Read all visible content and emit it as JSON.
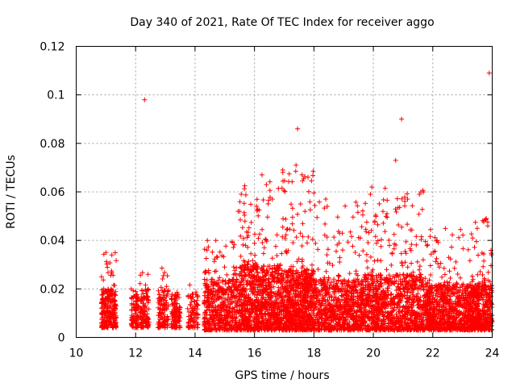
{
  "chart_data": {
    "type": "scatter",
    "title": "Day 340 of 2021, Rate Of TEC Index for receiver aggo",
    "xlabel": "GPS time / hours",
    "ylabel": "ROTI / TECUs",
    "xlim": [
      10,
      24
    ],
    "ylim": [
      0,
      0.12
    ],
    "x_ticks": [
      "10",
      "12",
      "14",
      "16",
      "18",
      "20",
      "22",
      "24"
    ],
    "y_ticks": [
      "0",
      "0.02",
      "0.04",
      "0.06",
      "0.08",
      "0.1",
      "0.12"
    ],
    "grid": true,
    "marker": "+",
    "series": [
      {
        "name": "ROTI",
        "color": "#ff0000",
        "clusters": [
          {
            "x0": 10.85,
            "x1": 11.35,
            "n": 260,
            "base": 0.004,
            "mean": 0.01,
            "max": 0.035
          },
          {
            "x0": 11.85,
            "x1": 12.1,
            "n": 90,
            "base": 0.004,
            "mean": 0.009,
            "max": 0.022
          },
          {
            "x0": 12.15,
            "x1": 12.45,
            "n": 110,
            "base": 0.004,
            "mean": 0.01,
            "max": 0.027
          },
          {
            "x0": 12.75,
            "x1": 13.1,
            "n": 120,
            "base": 0.004,
            "mean": 0.01,
            "max": 0.029
          },
          {
            "x0": 13.2,
            "x1": 13.5,
            "n": 110,
            "base": 0.004,
            "mean": 0.009,
            "max": 0.022
          },
          {
            "x0": 13.75,
            "x1": 14.1,
            "n": 90,
            "base": 0.004,
            "mean": 0.009,
            "max": 0.025
          },
          {
            "x0": 14.3,
            "x1": 15.5,
            "n": 520,
            "base": 0.003,
            "mean": 0.012,
            "max": 0.04
          },
          {
            "x0": 15.5,
            "x1": 16.9,
            "n": 900,
            "base": 0.003,
            "mean": 0.015,
            "max": 0.067
          },
          {
            "x0": 16.9,
            "x1": 18.0,
            "n": 800,
            "base": 0.003,
            "mean": 0.014,
            "max": 0.069
          },
          {
            "x0": 18.0,
            "x1": 19.7,
            "n": 800,
            "base": 0.003,
            "mean": 0.012,
            "max": 0.057
          },
          {
            "x0": 19.7,
            "x1": 21.7,
            "n": 1000,
            "base": 0.003,
            "mean": 0.013,
            "max": 0.062
          },
          {
            "x0": 21.7,
            "x1": 23.2,
            "n": 800,
            "base": 0.003,
            "mean": 0.011,
            "max": 0.045
          },
          {
            "x0": 23.2,
            "x1": 24.0,
            "n": 500,
            "base": 0.003,
            "mean": 0.011,
            "max": 0.049
          }
        ],
        "outliers": [
          {
            "x": 12.3,
            "y": 0.098
          },
          {
            "x": 17.45,
            "y": 0.086
          },
          {
            "x": 17.4,
            "y": 0.071
          },
          {
            "x": 17.6,
            "y": 0.067
          },
          {
            "x": 17.8,
            "y": 0.066
          },
          {
            "x": 16.25,
            "y": 0.067
          },
          {
            "x": 16.4,
            "y": 0.063
          },
          {
            "x": 16.6,
            "y": 0.057
          },
          {
            "x": 16.95,
            "y": 0.069
          },
          {
            "x": 17.55,
            "y": 0.055
          },
          {
            "x": 17.7,
            "y": 0.052
          },
          {
            "x": 18.4,
            "y": 0.057
          },
          {
            "x": 18.45,
            "y": 0.054
          },
          {
            "x": 15.5,
            "y": 0.052
          },
          {
            "x": 15.45,
            "y": 0.052
          },
          {
            "x": 19.95,
            "y": 0.062
          },
          {
            "x": 19.9,
            "y": 0.059
          },
          {
            "x": 20.75,
            "y": 0.073
          },
          {
            "x": 20.95,
            "y": 0.09
          },
          {
            "x": 21.15,
            "y": 0.057
          },
          {
            "x": 21.6,
            "y": 0.06
          },
          {
            "x": 21.55,
            "y": 0.059
          },
          {
            "x": 23.9,
            "y": 0.109
          },
          {
            "x": 23.8,
            "y": 0.049
          },
          {
            "x": 23.85,
            "y": 0.046
          },
          {
            "x": 14.7,
            "y": 0.04
          },
          {
            "x": 14.4,
            "y": 0.036
          },
          {
            "x": 11.0,
            "y": 0.035
          },
          {
            "x": 11.2,
            "y": 0.034
          }
        ]
      }
    ]
  }
}
